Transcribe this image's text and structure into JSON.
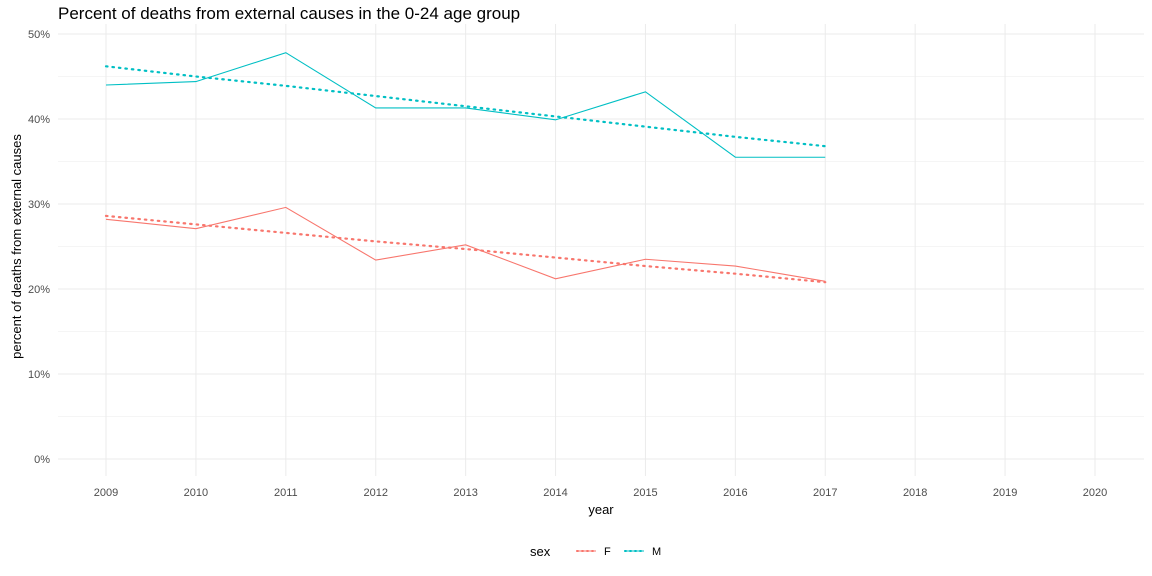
{
  "chart_data": {
    "type": "line",
    "title": "Percent of deaths from external causes in the 0-24 age group",
    "xlabel": "year",
    "ylabel": "percent of deaths from external causes",
    "x": [
      2009,
      2010,
      2011,
      2012,
      2013,
      2014,
      2015,
      2016,
      2017
    ],
    "x_ticks": [
      "2009",
      "2010",
      "2011",
      "2012",
      "2013",
      "2014",
      "2015",
      "2016",
      "2017",
      "2018",
      "2019",
      "2020"
    ],
    "xlim": [
      2009,
      2020
    ],
    "y_ticks": [
      "0%",
      "10%",
      "20%",
      "30%",
      "40%",
      "50%"
    ],
    "ylim": [
      0,
      50
    ],
    "grid": true,
    "legend": {
      "title": "sex",
      "position": "bottom"
    },
    "series": [
      {
        "name": "F",
        "color": "#F8766D",
        "values": [
          28.2,
          27.1,
          29.6,
          23.4,
          25.2,
          21.2,
          23.5,
          22.7,
          20.9
        ],
        "trend": [
          28.6,
          27.6,
          26.6,
          25.6,
          24.7,
          23.7,
          22.7,
          21.8,
          20.8
        ]
      },
      {
        "name": "M",
        "color": "#00BFC4",
        "values": [
          44.0,
          44.4,
          47.8,
          41.3,
          41.3,
          39.9,
          43.2,
          35.5,
          35.5
        ],
        "trend": [
          46.2,
          45.0,
          43.9,
          42.7,
          41.5,
          40.3,
          39.1,
          37.9,
          36.8
        ]
      }
    ]
  }
}
